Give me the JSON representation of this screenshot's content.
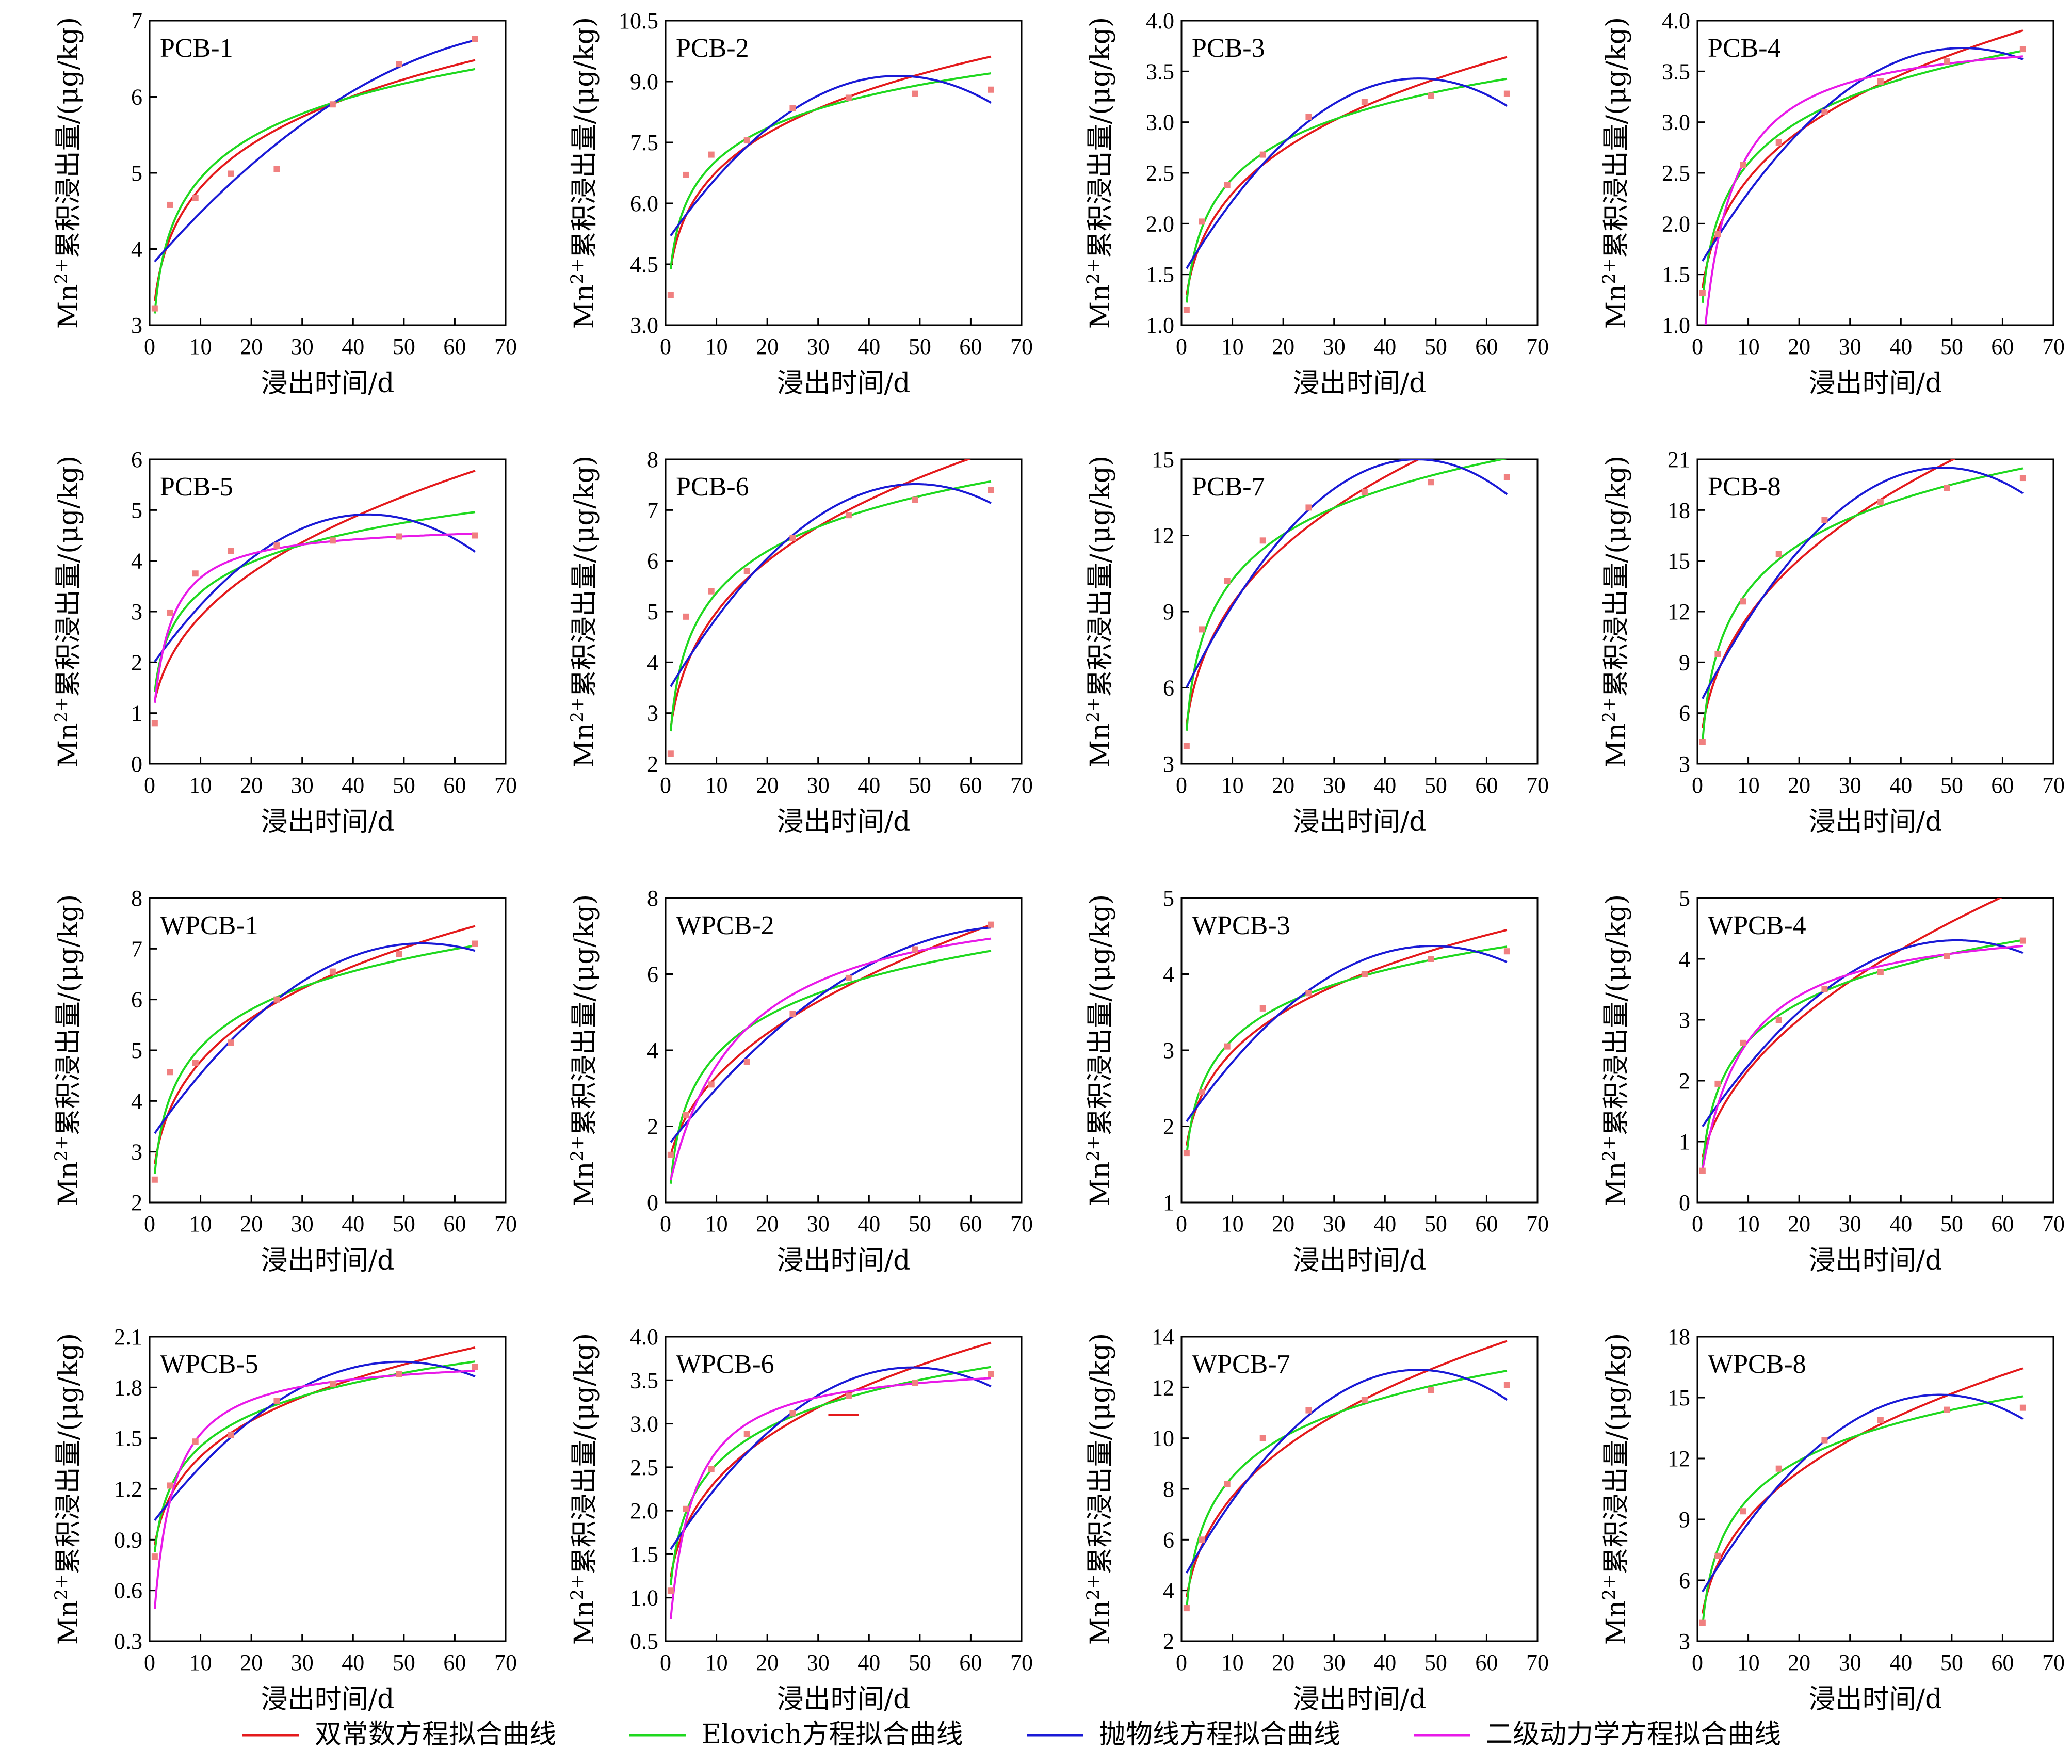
{
  "xlabel": "浸出时间/d",
  "ylabel_main": "Mn",
  "ylabel_sup": "2+",
  "ylabel_rest": "累积浸出量/(μg/kg)",
  "colors": {
    "double_constant": "#e41a1c",
    "elovich": "#1fd81f",
    "parabolic": "#1a1ad6",
    "second_order": "#e81ae8",
    "points": "#f08080"
  },
  "legend": [
    {
      "key": "double_constant",
      "label": "双常数方程拟合曲线"
    },
    {
      "key": "elovich",
      "label": "Elovich方程拟合曲线"
    },
    {
      "key": "parabolic",
      "label": "抛物线方程拟合曲线"
    },
    {
      "key": "second_order",
      "label": "二级动力学方程拟合曲线"
    }
  ],
  "chart_data": [
    {
      "type": "scatter",
      "title": "PCB-1",
      "xlim": [
        0,
        70
      ],
      "ylim": [
        3,
        7
      ],
      "yticks": [
        "3",
        "4",
        "5",
        "6",
        "7"
      ],
      "x": [
        1,
        4,
        9,
        16,
        25,
        36,
        49,
        64
      ],
      "y": [
        3.22,
        4.58,
        4.67,
        4.99,
        5.05,
        5.9,
        6.43,
        6.76
      ],
      "curves": [
        "double_constant",
        "elovich",
        "parabolic"
      ]
    },
    {
      "type": "scatter",
      "title": "PCB-2",
      "xlim": [
        0,
        70
      ],
      "ylim": [
        3,
        10.5
      ],
      "yticks": [
        "3.0",
        "4.5",
        "6.0",
        "7.5",
        "9.0",
        "10.5"
      ],
      "x": [
        1,
        4,
        9,
        16,
        25,
        36,
        49,
        64
      ],
      "y": [
        3.75,
        6.7,
        7.2,
        7.55,
        8.35,
        8.6,
        8.7,
        8.8
      ],
      "curves": [
        "double_constant",
        "elovich",
        "parabolic"
      ]
    },
    {
      "type": "scatter",
      "title": "PCB-3",
      "xlim": [
        0,
        70
      ],
      "ylim": [
        1,
        4
      ],
      "yticks": [
        "1.0",
        "1.5",
        "2.0",
        "2.5",
        "3.0",
        "3.5",
        "4.0"
      ],
      "x": [
        1,
        4,
        9,
        16,
        25,
        36,
        49,
        64
      ],
      "y": [
        1.15,
        2.02,
        2.38,
        2.68,
        3.05,
        3.2,
        3.26,
        3.28
      ],
      "curves": [
        "double_constant",
        "elovich",
        "parabolic"
      ]
    },
    {
      "type": "scatter",
      "title": "PCB-4",
      "xlim": [
        0,
        70
      ],
      "ylim": [
        1,
        4
      ],
      "yticks": [
        "1.0",
        "1.5",
        "2.0",
        "2.5",
        "3.0",
        "3.5",
        "4.0"
      ],
      "x": [
        1,
        4,
        9,
        16,
        25,
        36,
        49,
        64
      ],
      "y": [
        1.32,
        1.9,
        2.58,
        2.8,
        3.1,
        3.4,
        3.6,
        3.72
      ],
      "curves": [
        "double_constant",
        "elovich",
        "parabolic",
        "second_order"
      ]
    },
    {
      "type": "scatter",
      "title": "PCB-5",
      "xlim": [
        0,
        70
      ],
      "ylim": [
        0,
        6
      ],
      "yticks": [
        "0",
        "1",
        "2",
        "3",
        "4",
        "5",
        "6"
      ],
      "x": [
        1,
        4,
        9,
        16,
        25,
        36,
        49,
        64
      ],
      "y": [
        0.8,
        2.98,
        3.75,
        4.2,
        4.3,
        4.4,
        4.48,
        4.5
      ],
      "curves": [
        "double_constant",
        "elovich",
        "parabolic",
        "second_order"
      ]
    },
    {
      "type": "scatter",
      "title": "PCB-6",
      "xlim": [
        0,
        70
      ],
      "ylim": [
        2,
        8
      ],
      "yticks": [
        "2",
        "3",
        "4",
        "5",
        "6",
        "7",
        "8"
      ],
      "x": [
        1,
        4,
        9,
        16,
        25,
        36,
        49,
        64
      ],
      "y": [
        2.2,
        4.9,
        5.4,
        5.8,
        6.45,
        6.9,
        7.2,
        7.4
      ],
      "curves": [
        "double_constant",
        "elovich",
        "parabolic"
      ]
    },
    {
      "type": "scatter",
      "title": "PCB-7",
      "xlim": [
        0,
        70
      ],
      "ylim": [
        3,
        15
      ],
      "yticks": [
        "3",
        "6",
        "9",
        "12",
        "15"
      ],
      "x": [
        1,
        4,
        9,
        16,
        25,
        36,
        49,
        64
      ],
      "y": [
        3.7,
        8.3,
        10.2,
        11.8,
        13.1,
        13.7,
        14.1,
        14.3
      ],
      "curves": [
        "double_constant",
        "elovich",
        "parabolic"
      ]
    },
    {
      "type": "scatter",
      "title": "PCB-8",
      "xlim": [
        0,
        70
      ],
      "ylim": [
        3,
        21
      ],
      "yticks": [
        "3",
        "6",
        "9",
        "12",
        "15",
        "18",
        "21"
      ],
      "x": [
        1,
        4,
        9,
        16,
        25,
        36,
        49,
        64
      ],
      "y": [
        4.3,
        9.5,
        12.6,
        15.4,
        17.4,
        18.5,
        19.3,
        19.9
      ],
      "curves": [
        "double_constant",
        "elovich",
        "parabolic"
      ]
    },
    {
      "type": "scatter",
      "title": "WPCB-1",
      "xlim": [
        0,
        70
      ],
      "ylim": [
        2,
        8
      ],
      "yticks": [
        "2",
        "3",
        "4",
        "5",
        "6",
        "7",
        "8"
      ],
      "x": [
        1,
        4,
        9,
        16,
        25,
        36,
        49,
        64
      ],
      "y": [
        2.45,
        4.57,
        4.75,
        5.15,
        6.0,
        6.55,
        6.9,
        7.1
      ],
      "curves": [
        "double_constant",
        "elovich",
        "parabolic"
      ]
    },
    {
      "type": "scatter",
      "title": "WPCB-2",
      "xlim": [
        0,
        70
      ],
      "ylim": [
        0,
        8
      ],
      "yticks": [
        "0",
        "2",
        "4",
        "6",
        "8"
      ],
      "x": [
        1,
        4,
        9,
        16,
        25,
        36,
        49,
        64
      ],
      "y": [
        1.25,
        2.3,
        3.1,
        3.7,
        4.95,
        5.9,
        6.65,
        7.3
      ],
      "curves": [
        "double_constant",
        "elovich",
        "parabolic",
        "second_order"
      ]
    },
    {
      "type": "scatter",
      "title": "WPCB-3",
      "xlim": [
        0,
        70
      ],
      "ylim": [
        1,
        5
      ],
      "yticks": [
        "1",
        "2",
        "3",
        "4",
        "5"
      ],
      "x": [
        1,
        4,
        9,
        16,
        25,
        36,
        49,
        64
      ],
      "y": [
        1.65,
        2.45,
        3.05,
        3.55,
        3.75,
        4.0,
        4.2,
        4.3
      ],
      "curves": [
        "double_constant",
        "elovich",
        "parabolic"
      ]
    },
    {
      "type": "scatter",
      "title": "WPCB-4",
      "xlim": [
        0,
        70
      ],
      "ylim": [
        0,
        5
      ],
      "yticks": [
        "0",
        "1",
        "2",
        "3",
        "4",
        "5"
      ],
      "x": [
        1,
        4,
        9,
        16,
        25,
        36,
        49,
        64
      ],
      "y": [
        0.52,
        1.95,
        2.62,
        3.0,
        3.5,
        3.78,
        4.05,
        4.3
      ],
      "curves": [
        "double_constant",
        "elovich",
        "parabolic",
        "second_order"
      ]
    },
    {
      "type": "scatter",
      "title": "WPCB-5",
      "xlim": [
        0,
        70
      ],
      "ylim": [
        0.3,
        2.1
      ],
      "yticks": [
        "0.3",
        "0.6",
        "0.9",
        "1.2",
        "1.5",
        "1.8",
        "2.1"
      ],
      "x": [
        1,
        4,
        9,
        16,
        25,
        36,
        49,
        64
      ],
      "y": [
        0.8,
        1.22,
        1.48,
        1.52,
        1.72,
        1.82,
        1.88,
        1.92
      ],
      "curves": [
        "double_constant",
        "elovich",
        "parabolic",
        "second_order"
      ]
    },
    {
      "type": "scatter",
      "title": "WPCB-6",
      "xlim": [
        0,
        70
      ],
      "ylim": [
        0.5,
        4
      ],
      "yticks": [
        "0.5",
        "1.0",
        "1.5",
        "2.0",
        "2.5",
        "3.0",
        "3.5",
        "4.0"
      ],
      "x": [
        1,
        4,
        9,
        16,
        25,
        36,
        49,
        64
      ],
      "y": [
        1.08,
        2.02,
        2.48,
        2.88,
        3.12,
        3.32,
        3.47,
        3.57
      ],
      "curves": [
        "double_constant",
        "elovich",
        "parabolic",
        "second_order"
      ]
    },
    {
      "type": "scatter",
      "title": "WPCB-7",
      "xlim": [
        0,
        70
      ],
      "ylim": [
        2,
        14
      ],
      "yticks": [
        "2",
        "4",
        "6",
        "8",
        "10",
        "12",
        "14"
      ],
      "x": [
        1,
        4,
        9,
        16,
        25,
        36,
        49,
        64
      ],
      "y": [
        3.3,
        6.0,
        8.2,
        10.0,
        11.1,
        11.5,
        11.9,
        12.1
      ],
      "curves": [
        "double_constant",
        "elovich",
        "parabolic"
      ]
    },
    {
      "type": "scatter",
      "title": "WPCB-8",
      "xlim": [
        0,
        70
      ],
      "ylim": [
        3,
        18
      ],
      "yticks": [
        "3",
        "6",
        "9",
        "12",
        "15",
        "18"
      ],
      "x": [
        1,
        4,
        9,
        16,
        25,
        36,
        49,
        64
      ],
      "y": [
        3.9,
        7.2,
        9.4,
        11.5,
        12.9,
        13.9,
        14.4,
        14.5
      ],
      "curves": [
        "double_constant",
        "elovich",
        "parabolic"
      ]
    }
  ]
}
